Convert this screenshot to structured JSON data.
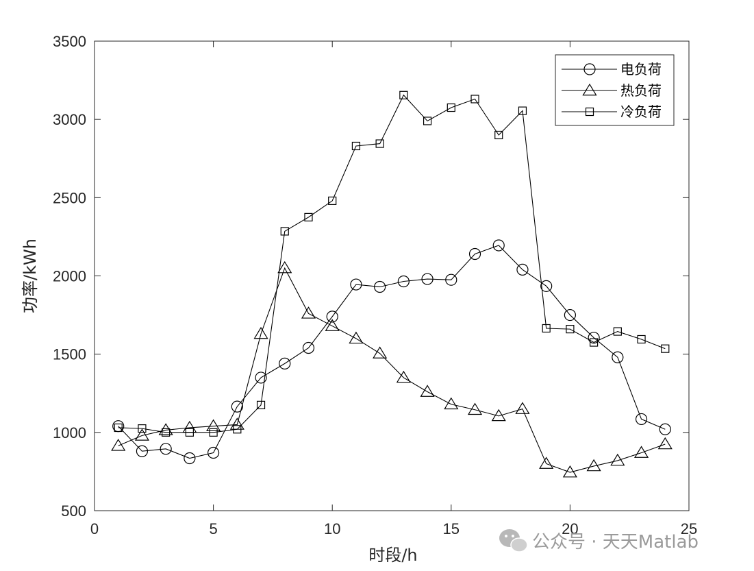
{
  "chart_data": {
    "type": "line",
    "title": "",
    "xlabel": "时段/h",
    "ylabel": "功率/kWh",
    "xlim": [
      0,
      25
    ],
    "ylim": [
      500,
      3500
    ],
    "xticks": [
      0,
      5,
      10,
      15,
      20,
      25
    ],
    "yticks": [
      500,
      1000,
      1500,
      2000,
      2500,
      3000,
      3500
    ],
    "grid": false,
    "legend_position": "top-right",
    "x": [
      1,
      2,
      3,
      4,
      5,
      6,
      7,
      8,
      9,
      10,
      11,
      12,
      13,
      14,
      15,
      16,
      17,
      18,
      19,
      20,
      21,
      22,
      23,
      24
    ],
    "series": [
      {
        "name": "电负荷",
        "marker": "circle",
        "values": [
          1040,
          880,
          895,
          835,
          870,
          1165,
          1350,
          1440,
          1540,
          1740,
          1945,
          1930,
          1965,
          1980,
          1975,
          2140,
          2195,
          2040,
          1935,
          1750,
          1605,
          1480,
          1085,
          1020
        ]
      },
      {
        "name": "热负荷",
        "marker": "triangle",
        "values": [
          915,
          980,
          1015,
          1030,
          1040,
          1050,
          1630,
          2050,
          1760,
          1680,
          1600,
          1505,
          1350,
          1260,
          1180,
          1145,
          1105,
          1150,
          800,
          745,
          785,
          820,
          870,
          925
        ]
      },
      {
        "name": "冷负荷",
        "marker": "square",
        "values": [
          1030,
          1025,
          1000,
          1000,
          1000,
          1020,
          1175,
          2285,
          2375,
          2480,
          2830,
          2845,
          3155,
          2990,
          3075,
          3130,
          2900,
          3055,
          1665,
          1660,
          1575,
          1645,
          1595,
          1535
        ]
      }
    ]
  },
  "watermark": {
    "text": "公众号 · 天天Matlab",
    "icon": "wechat-icon"
  }
}
